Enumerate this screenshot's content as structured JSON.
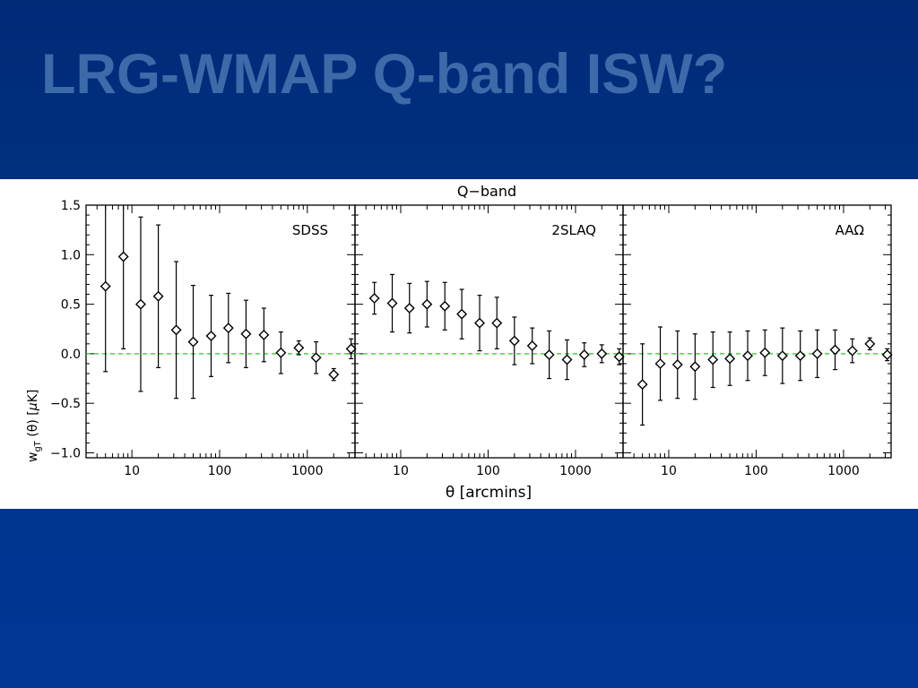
{
  "slide": {
    "title": "LRG-WMAP Q-band ISW?",
    "background_color": "#00308a",
    "title_color": "#3d6aa8"
  },
  "figure": {
    "title": "Q−band",
    "xlabel": "θ [arcmins]",
    "ylabel": "w_gT (θ) [μK]",
    "zero_line_color": "#22cc22"
  },
  "chart_data": [
    {
      "type": "scatter",
      "panel_label": "SDSS",
      "xscale": "log",
      "xlim": [
        3,
        3500
      ],
      "ylim": [
        -1.05,
        1.5
      ],
      "yticks": [
        1.5,
        1.0,
        0.5,
        0.0,
        -0.5,
        -1.0
      ],
      "ytick_labels": [
        "1.5",
        "1.0",
        "0.5",
        "0.0",
        "−0.5",
        "−1.0"
      ],
      "xticks": [
        10,
        100,
        1000
      ],
      "xtick_labels": [
        "10",
        "100",
        "1000"
      ],
      "reference_line": 0.0,
      "x": [
        5,
        8,
        12.6,
        20,
        32,
        50,
        80,
        126,
        200,
        320,
        500,
        800,
        1260,
        2000,
        3160
      ],
      "y": [
        0.68,
        0.98,
        0.5,
        0.58,
        0.24,
        0.12,
        0.18,
        0.26,
        0.2,
        0.19,
        0.01,
        0.06,
        -0.04,
        -0.21,
        0.05
      ],
      "yerr": [
        0.86,
        0.93,
        0.88,
        0.72,
        0.69,
        0.57,
        0.41,
        0.35,
        0.34,
        0.27,
        0.21,
        0.07,
        0.16,
        0.06,
        0.1
      ]
    },
    {
      "type": "scatter",
      "panel_label": "2SLAQ",
      "xscale": "log",
      "xlim": [
        3,
        3500
      ],
      "ylim": [
        -1.05,
        1.5
      ],
      "xticks": [
        10,
        100,
        1000
      ],
      "xtick_labels": [
        "10",
        "100",
        "1000"
      ],
      "reference_line": 0.0,
      "x": [
        5,
        8,
        12.6,
        20,
        32,
        50,
        80,
        126,
        200,
        320,
        500,
        800,
        1260,
        2000,
        3160
      ],
      "y": [
        0.56,
        0.51,
        0.46,
        0.5,
        0.48,
        0.4,
        0.31,
        0.31,
        0.13,
        0.08,
        -0.01,
        -0.06,
        -0.01,
        0.0,
        -0.03
      ],
      "yerr": [
        0.16,
        0.29,
        0.25,
        0.23,
        0.24,
        0.25,
        0.28,
        0.26,
        0.24,
        0.18,
        0.24,
        0.2,
        0.12,
        0.09,
        0.08
      ]
    },
    {
      "type": "scatter",
      "panel_label": "AAΩ",
      "xscale": "log",
      "xlim": [
        3,
        3500
      ],
      "ylim": [
        -1.05,
        1.5
      ],
      "xticks": [
        10,
        100,
        1000
      ],
      "xtick_labels": [
        "10",
        "100",
        "1000"
      ],
      "reference_line": 0.0,
      "x": [
        5,
        8,
        12.6,
        20,
        32,
        50,
        80,
        126,
        200,
        320,
        500,
        800,
        1260,
        2000,
        3160
      ],
      "y": [
        -0.31,
        -0.1,
        -0.11,
        -0.13,
        -0.06,
        -0.05,
        -0.02,
        0.01,
        -0.02,
        -0.02,
        0.0,
        0.04,
        0.03,
        0.1,
        -0.01
      ],
      "yerr": [
        0.41,
        0.37,
        0.34,
        0.33,
        0.28,
        0.27,
        0.25,
        0.23,
        0.28,
        0.25,
        0.24,
        0.2,
        0.12,
        0.06,
        0.06
      ]
    }
  ]
}
